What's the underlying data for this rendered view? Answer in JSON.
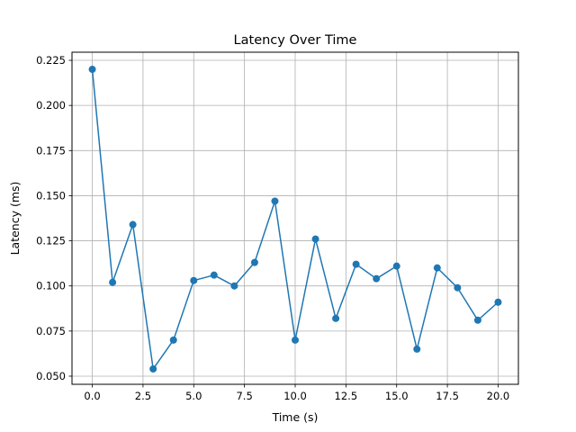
{
  "chart_data": {
    "type": "line",
    "title": "Latency Over Time",
    "xlabel": "Time (s)",
    "ylabel": "Latency (ms)",
    "xlim": [
      -1.0,
      21.0
    ],
    "ylim": [
      0.0455,
      0.2295
    ],
    "x_ticks": [
      "0.0",
      "2.5",
      "5.0",
      "7.5",
      "10.0",
      "12.5",
      "15.0",
      "17.5",
      "20.0"
    ],
    "x_tick_values": [
      0,
      2.5,
      5,
      7.5,
      10,
      12.5,
      15,
      17.5,
      20
    ],
    "y_ticks": [
      "0.050",
      "0.075",
      "0.100",
      "0.125",
      "0.150",
      "0.175",
      "0.200",
      "0.225"
    ],
    "y_tick_values": [
      0.05,
      0.075,
      0.1,
      0.125,
      0.15,
      0.175,
      0.2,
      0.225
    ],
    "grid": true,
    "color": "#1f77b4",
    "marker": "circle",
    "series": [
      {
        "x": [
          0,
          1,
          2,
          3,
          4,
          5,
          6,
          7,
          8,
          9,
          10,
          11,
          12,
          13,
          14,
          15,
          16,
          17,
          18,
          19,
          20
        ],
        "values": [
          0.22,
          0.102,
          0.134,
          0.054,
          0.07,
          0.103,
          0.106,
          0.1,
          0.113,
          0.147,
          0.07,
          0.126,
          0.082,
          0.112,
          0.104,
          0.111,
          0.065,
          0.11,
          0.099,
          0.081,
          0.091
        ]
      }
    ]
  }
}
